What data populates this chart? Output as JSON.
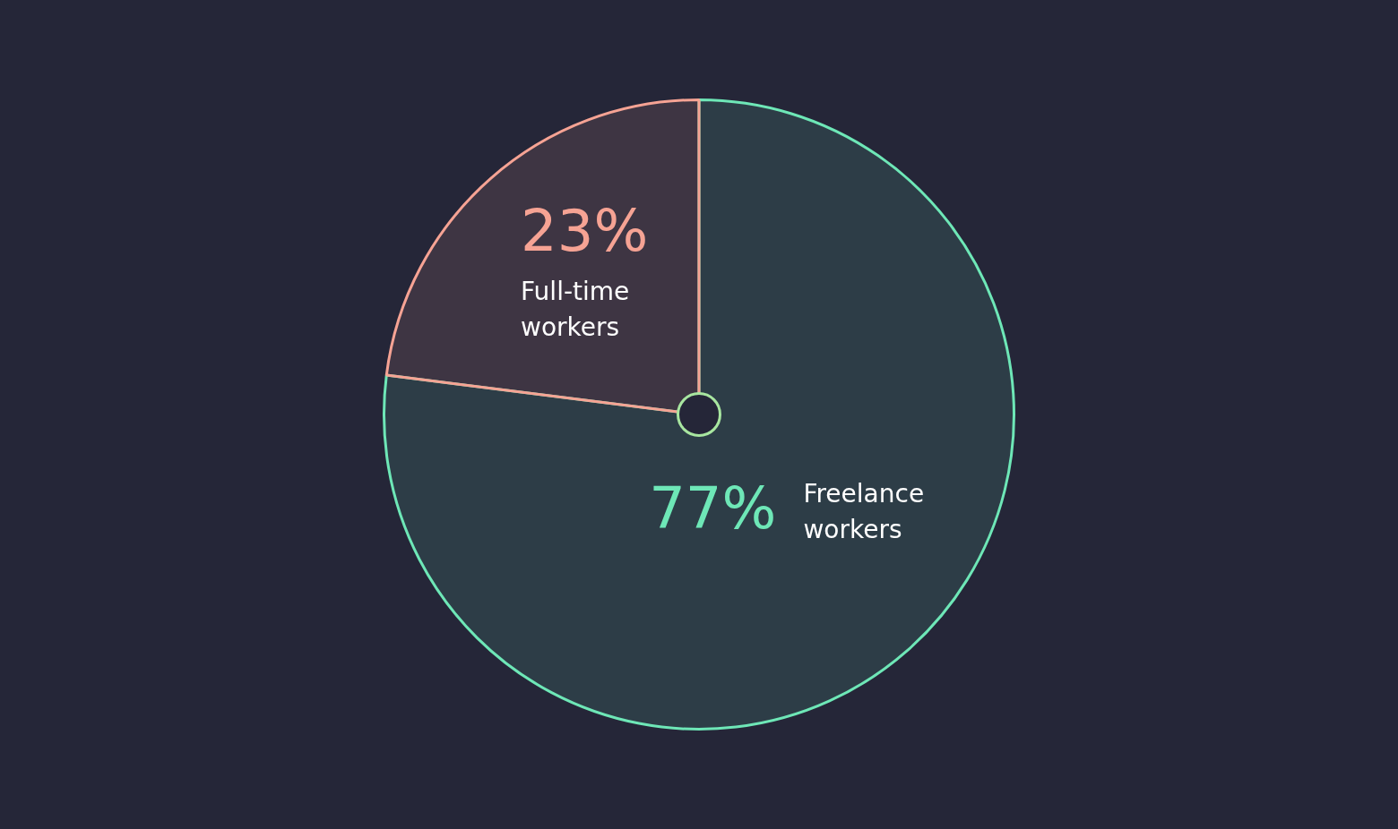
{
  "chart_data": {
    "type": "pie",
    "categories": [
      "Freelance workers",
      "Full-time workers"
    ],
    "values": [
      77,
      23
    ],
    "colors": [
      "#6ee7b7",
      "#f6a394"
    ],
    "value_labels": [
      "77%",
      "23%"
    ],
    "legend": false
  }
}
